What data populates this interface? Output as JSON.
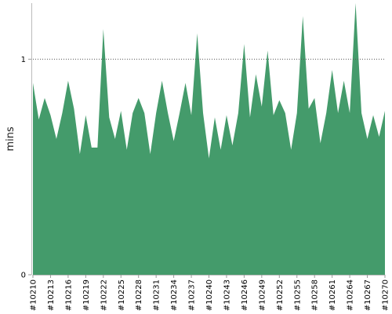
{
  "chart_data": {
    "type": "area",
    "title": "",
    "xlabel": "",
    "ylabel": "mins",
    "ylim": [
      0,
      1.26
    ],
    "yticks": [
      0,
      1
    ],
    "reference_line": 1,
    "color": "#449b6b",
    "grid": "dotted line at y=1",
    "x": [
      "#10210",
      "#10211",
      "#10212",
      "#10213",
      "#10214",
      "#10215",
      "#10216",
      "#10217",
      "#10218",
      "#10219",
      "#10220",
      "#10221",
      "#10222",
      "#10223",
      "#10224",
      "#10225",
      "#10226",
      "#10227",
      "#10228",
      "#10229",
      "#10230",
      "#10231",
      "#10232",
      "#10233",
      "#10234",
      "#10235",
      "#10236",
      "#10237",
      "#10238",
      "#10239",
      "#10240",
      "#10241",
      "#10242",
      "#10243",
      "#10244",
      "#10245",
      "#10246",
      "#10247",
      "#10248",
      "#10249",
      "#10250",
      "#10251",
      "#10252",
      "#10253",
      "#10254",
      "#10255",
      "#10256",
      "#10257",
      "#10258",
      "#10259",
      "#10260",
      "#10261",
      "#10262",
      "#10263",
      "#10264",
      "#10265",
      "#10266",
      "#10267",
      "#10268",
      "#10269",
      "#10270"
    ],
    "xtick_labels": [
      "#10210",
      "#10213",
      "#10216",
      "#10219",
      "#10222",
      "#10225",
      "#10228",
      "#10231",
      "#10234",
      "#10237",
      "#10240",
      "#10243",
      "#10246",
      "#10249",
      "#10252",
      "#10255",
      "#10258",
      "#10261",
      "#10264",
      "#10267",
      "#10270"
    ],
    "values": [
      0.89,
      0.72,
      0.82,
      0.74,
      0.63,
      0.75,
      0.9,
      0.77,
      0.56,
      0.74,
      0.59,
      0.59,
      1.14,
      0.73,
      0.63,
      0.76,
      0.58,
      0.75,
      0.82,
      0.75,
      0.56,
      0.75,
      0.9,
      0.75,
      0.62,
      0.75,
      0.89,
      0.74,
      1.12,
      0.75,
      0.54,
      0.73,
      0.58,
      0.74,
      0.6,
      0.75,
      1.07,
      0.73,
      0.93,
      0.78,
      1.04,
      0.74,
      0.81,
      0.75,
      0.58,
      0.75,
      1.2,
      0.77,
      0.82,
      0.61,
      0.75,
      0.95,
      0.75,
      0.9,
      0.75,
      1.26,
      0.75,
      0.63,
      0.74,
      0.64,
      0.76
    ]
  }
}
